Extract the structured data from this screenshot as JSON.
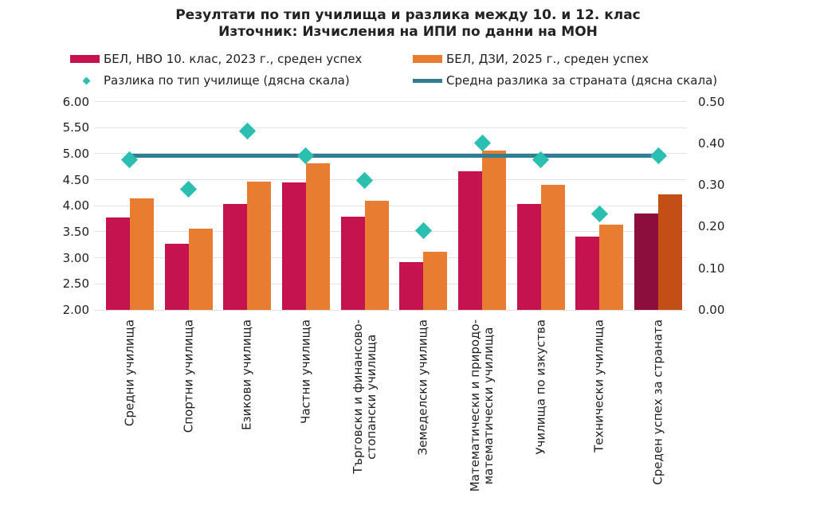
{
  "title": {
    "line1": "Резултати по тип училища и разлика между 10. и 12. клас",
    "line2": "Източник: Изчисления на ИПИ по данни на МОН"
  },
  "legend": {
    "items": [
      {
        "label": "БЕЛ, НВО 10. клас, 2023 г., среден успех",
        "marker": "bar",
        "color": "#c4134f"
      },
      {
        "label": "БЕЛ, ДЗИ, 2025 г., среден успех",
        "marker": "bar",
        "color": "#e87d31"
      },
      {
        "label": "Разлика по тип училище (дясна скала)",
        "marker": "diamond",
        "color": "#2bbfb2"
      },
      {
        "label": "Средна разлика за страната (дясна скала)",
        "marker": "line",
        "color": "#2f7e93"
      }
    ]
  },
  "chart_data": {
    "type": "bar",
    "title": "Резултати по тип училища и разлика между 10. и 12. клас",
    "subtitle": "Източник: Изчисления на ИПИ по данни на МОН",
    "categories": [
      "Средни училища",
      "Спортни училища",
      "Езикови училища",
      "Частни училища",
      "Търговски и финансово-\nстопански училища",
      "Земеделски училища",
      "Математически и природо-\nматематически училища",
      "Училища по изкуства",
      "Технически училища",
      "Среден успех за страната"
    ],
    "series": [
      {
        "name": "БЕЛ, НВО 10. клас, 2023 г., среден успех",
        "type": "bar",
        "axis": "left",
        "color": "#c4134f",
        "last_category_color": "#8b0e3c",
        "values": [
          3.78,
          3.27,
          4.03,
          4.44,
          3.79,
          2.92,
          4.66,
          4.04,
          3.41,
          3.85
        ]
      },
      {
        "name": "БЕЛ, ДЗИ, 2025 г., среден успех",
        "type": "bar",
        "axis": "left",
        "color": "#e87d31",
        "last_category_color": "#c34f17",
        "values": [
          4.14,
          3.56,
          4.46,
          4.81,
          4.1,
          3.11,
          5.06,
          4.4,
          3.64,
          4.22
        ]
      },
      {
        "name": "Разлика по тип училище (дясна скала)",
        "type": "scatter",
        "marker": "diamond",
        "axis": "right",
        "color": "#2bbfb2",
        "values": [
          0.36,
          0.29,
          0.43,
          0.37,
          0.31,
          0.19,
          0.4,
          0.36,
          0.23,
          0.37
        ]
      },
      {
        "name": "Средна разлика за страната (дясна скала)",
        "type": "line",
        "axis": "right",
        "color": "#2f7e93",
        "value": 0.37
      }
    ],
    "left_axis": {
      "min": 2.0,
      "max": 6.0,
      "step": 0.5,
      "ticks": [
        "6.00",
        "5.50",
        "5.00",
        "4.50",
        "4.00",
        "3.50",
        "3.00",
        "2.50",
        "2.00"
      ]
    },
    "right_axis": {
      "min": 0.0,
      "max": 0.5,
      "step": 0.1,
      "ticks": [
        "0.50",
        "0.40",
        "0.30",
        "0.20",
        "0.10",
        "0.00"
      ]
    },
    "grid": "horizontal",
    "legend_position": "top"
  }
}
